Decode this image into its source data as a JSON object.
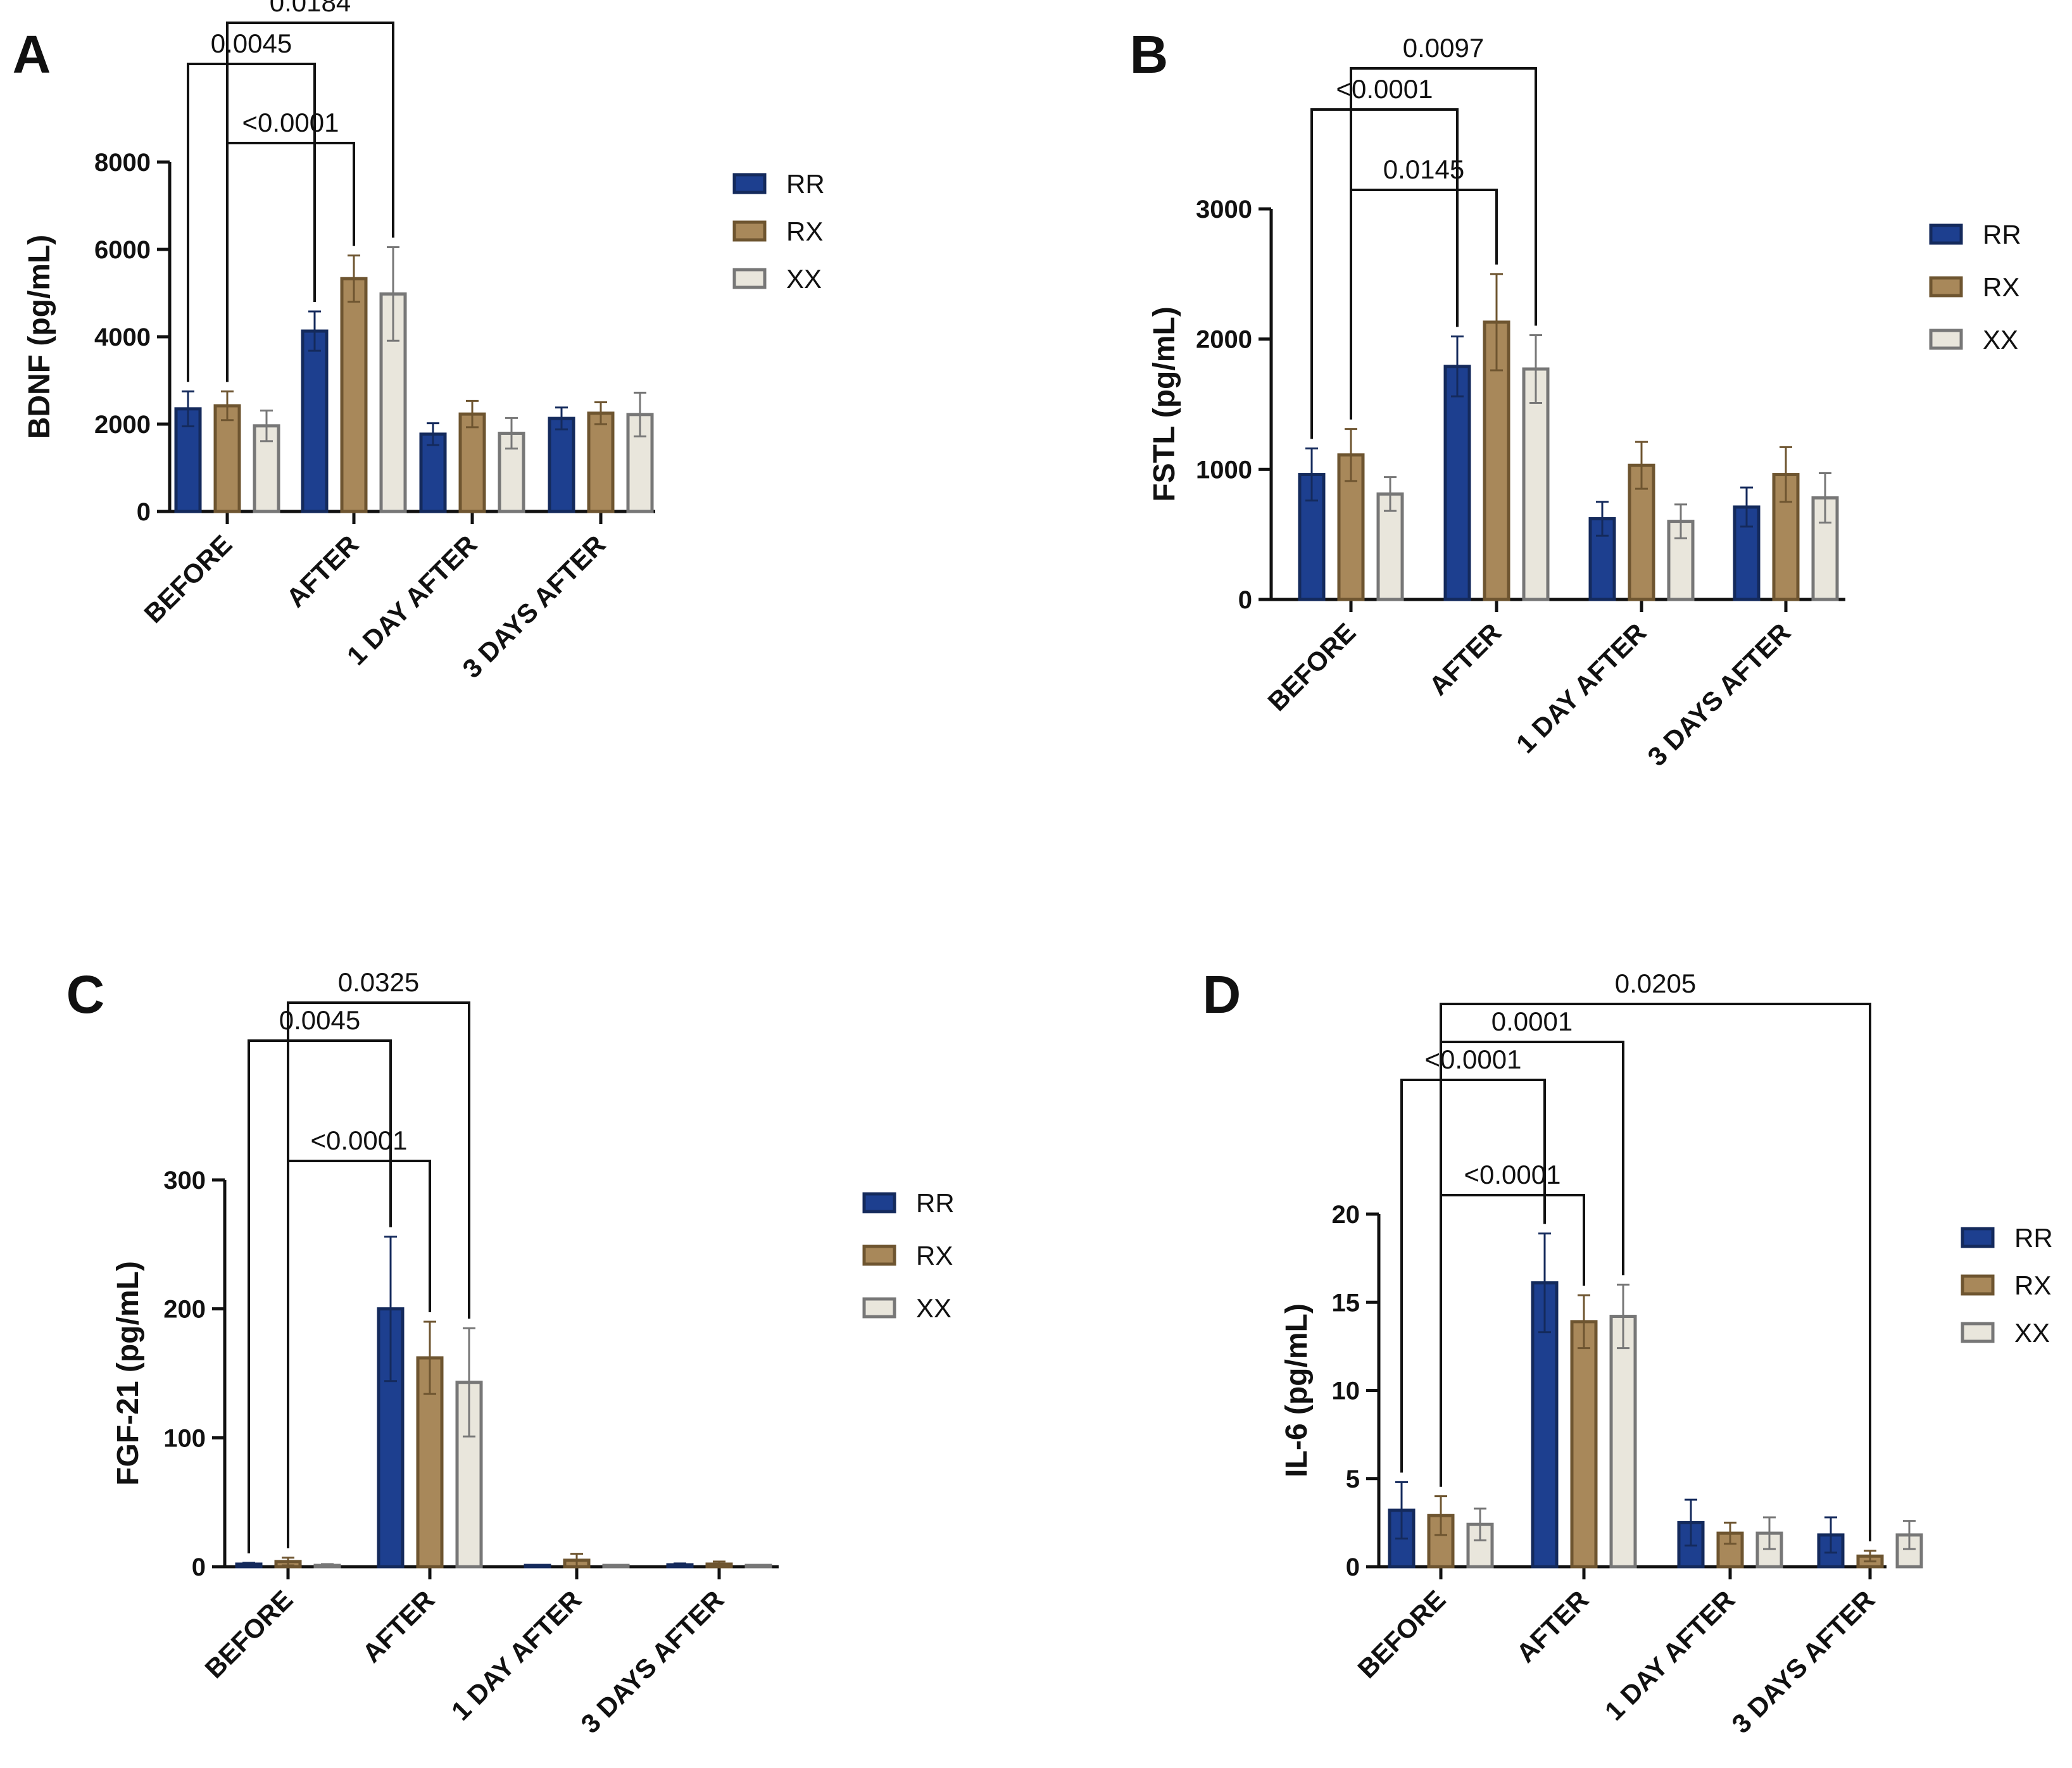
{
  "figure": {
    "colors": {
      "RR": "#1d3f8f",
      "RX": "#a8885a",
      "XX": "#e9e6dc"
    },
    "edge_colors": {
      "RR": "#142a5c",
      "RX": "#6e5530",
      "XX": "#777777"
    }
  },
  "chart_data": [
    {
      "panel": "A",
      "type": "bar",
      "ylabel": "BDNF (pg/mL)",
      "ylim": [
        0,
        8000
      ],
      "yticks": [
        0,
        2000,
        4000,
        6000,
        8000
      ],
      "categories": [
        "BEFORE",
        "AFTER",
        "1 DAY AFTER",
        "3 DAYS AFTER"
      ],
      "series": [
        {
          "name": "RR",
          "values": [
            2350,
            4130,
            1770,
            2130
          ],
          "errors": [
            400,
            450,
            250,
            250
          ]
        },
        {
          "name": "RX",
          "values": [
            2420,
            5330,
            2230,
            2250
          ],
          "errors": [
            330,
            530,
            300,
            250
          ]
        },
        {
          "name": "XX",
          "values": [
            1960,
            4980,
            1790,
            2220
          ],
          "errors": [
            350,
            1070,
            350,
            500
          ]
        }
      ],
      "legend": [
        "RR",
        "RX",
        "XX"
      ],
      "significance": [
        {
          "label": "0.0184",
          "from": [
            0,
            1
          ],
          "to": [
            1,
            2
          ]
        },
        {
          "label": "0.0045",
          "from": [
            0,
            0
          ],
          "to": [
            1,
            0
          ]
        },
        {
          "label": "<0.0001",
          "from": [
            0,
            1
          ],
          "to": [
            1,
            1
          ]
        }
      ]
    },
    {
      "panel": "B",
      "type": "bar",
      "ylabel": "FSTL (pg/mL)",
      "ylim": [
        0,
        3000
      ],
      "yticks": [
        0,
        1000,
        2000,
        3000
      ],
      "categories": [
        "BEFORE",
        "AFTER",
        "1 DAY AFTER",
        "3 DAYS AFTER"
      ],
      "series": [
        {
          "name": "RR",
          "values": [
            960,
            1790,
            620,
            710
          ],
          "errors": [
            200,
            230,
            130,
            150
          ]
        },
        {
          "name": "RX",
          "values": [
            1110,
            2130,
            1030,
            960
          ],
          "errors": [
            200,
            370,
            180,
            210
          ]
        },
        {
          "name": "XX",
          "values": [
            810,
            1770,
            600,
            780
          ],
          "errors": [
            130,
            260,
            130,
            190
          ]
        }
      ],
      "legend": [
        "RR",
        "RX",
        "XX"
      ],
      "significance": [
        {
          "label": "0.0097",
          "from": [
            0,
            1
          ],
          "to": [
            1,
            2
          ]
        },
        {
          "label": "<0.0001",
          "from": [
            0,
            0
          ],
          "to": [
            1,
            0
          ]
        },
        {
          "label": "0.0145",
          "from": [
            0,
            1
          ],
          "to": [
            1,
            1
          ]
        }
      ]
    },
    {
      "panel": "C",
      "type": "bar",
      "ylabel": "FGF-21 (pg/mL)",
      "ylim": [
        0,
        300
      ],
      "yticks": [
        0,
        100,
        200,
        300
      ],
      "categories": [
        "BEFORE",
        "AFTER",
        "1 DAY AFTER",
        "3 DAYS AFTER"
      ],
      "series": [
        {
          "name": "RR",
          "values": [
            2,
            200,
            0.5,
            1.5
          ],
          "errors": [
            1,
            56,
            0.5,
            1
          ]
        },
        {
          "name": "RX",
          "values": [
            4,
            162,
            5,
            2
          ],
          "errors": [
            3,
            28,
            5,
            2
          ]
        },
        {
          "name": "XX",
          "values": [
            1,
            143,
            0.5,
            0.5
          ],
          "errors": [
            1,
            42,
            0.5,
            0.5
          ]
        }
      ],
      "legend": [
        "RR",
        "RX",
        "XX"
      ],
      "significance": [
        {
          "label": "0.0325",
          "from": [
            0,
            1
          ],
          "to": [
            1,
            2
          ]
        },
        {
          "label": "0.0045",
          "from": [
            0,
            0
          ],
          "to": [
            1,
            0
          ]
        },
        {
          "label": "<0.0001",
          "from": [
            0,
            1
          ],
          "to": [
            1,
            1
          ]
        }
      ]
    },
    {
      "panel": "D",
      "type": "bar",
      "ylabel": "IL-6 (pg/mL)",
      "ylim": [
        0,
        20
      ],
      "yticks": [
        0,
        5,
        10,
        15,
        20
      ],
      "categories": [
        "BEFORE",
        "AFTER",
        "1 DAY AFTER",
        "3 DAYS AFTER"
      ],
      "series": [
        {
          "name": "RR",
          "values": [
            3.2,
            16.1,
            2.5,
            1.8
          ],
          "errors": [
            1.6,
            2.8,
            1.3,
            1.0
          ]
        },
        {
          "name": "RX",
          "values": [
            2.9,
            13.9,
            1.9,
            0.6
          ],
          "errors": [
            1.1,
            1.5,
            0.6,
            0.3
          ]
        },
        {
          "name": "XX",
          "values": [
            2.4,
            14.2,
            1.9,
            1.8
          ],
          "errors": [
            0.9,
            1.8,
            0.9,
            0.8
          ]
        }
      ],
      "legend": [
        "RR",
        "RX",
        "XX"
      ],
      "significance": [
        {
          "label": "0.0205",
          "from": [
            0,
            1
          ],
          "to": [
            3,
            1
          ]
        },
        {
          "label": "0.0001",
          "from": [
            0,
            1
          ],
          "to": [
            1,
            2
          ]
        },
        {
          "label": "<0.0001",
          "from": [
            0,
            0
          ],
          "to": [
            1,
            0
          ]
        },
        {
          "label": "<0.0001",
          "from": [
            0,
            1
          ],
          "to": [
            1,
            1
          ]
        }
      ]
    }
  ]
}
